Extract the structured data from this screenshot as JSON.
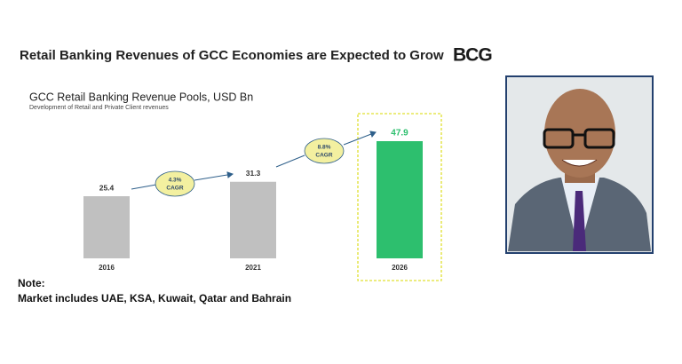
{
  "chart_data": {
    "type": "bar",
    "title": "Retail Banking Revenues of GCC Economies are Expected to Grow",
    "brand": "BCG",
    "subtitle": "GCC Retail Banking Revenue Pools, USD Bn",
    "caption": "Development of Retail and Private Client revenues",
    "categories": [
      "2016",
      "2021",
      "2026"
    ],
    "values": [
      25.4,
      31.3,
      47.9
    ],
    "colors": [
      "#c0c0c0",
      "#c0c0c0",
      "#2dbf6e"
    ],
    "value_label_colors": [
      "#333333",
      "#333333",
      "#2dbf6e"
    ],
    "annotations": [
      [
        "4.3%",
        "CAGR"
      ],
      [
        "8.8%",
        "CAGR"
      ]
    ],
    "note_title": "Note:",
    "note": "Market includes UAE, KSA, Kuwait, Qatar and Bahrain"
  }
}
